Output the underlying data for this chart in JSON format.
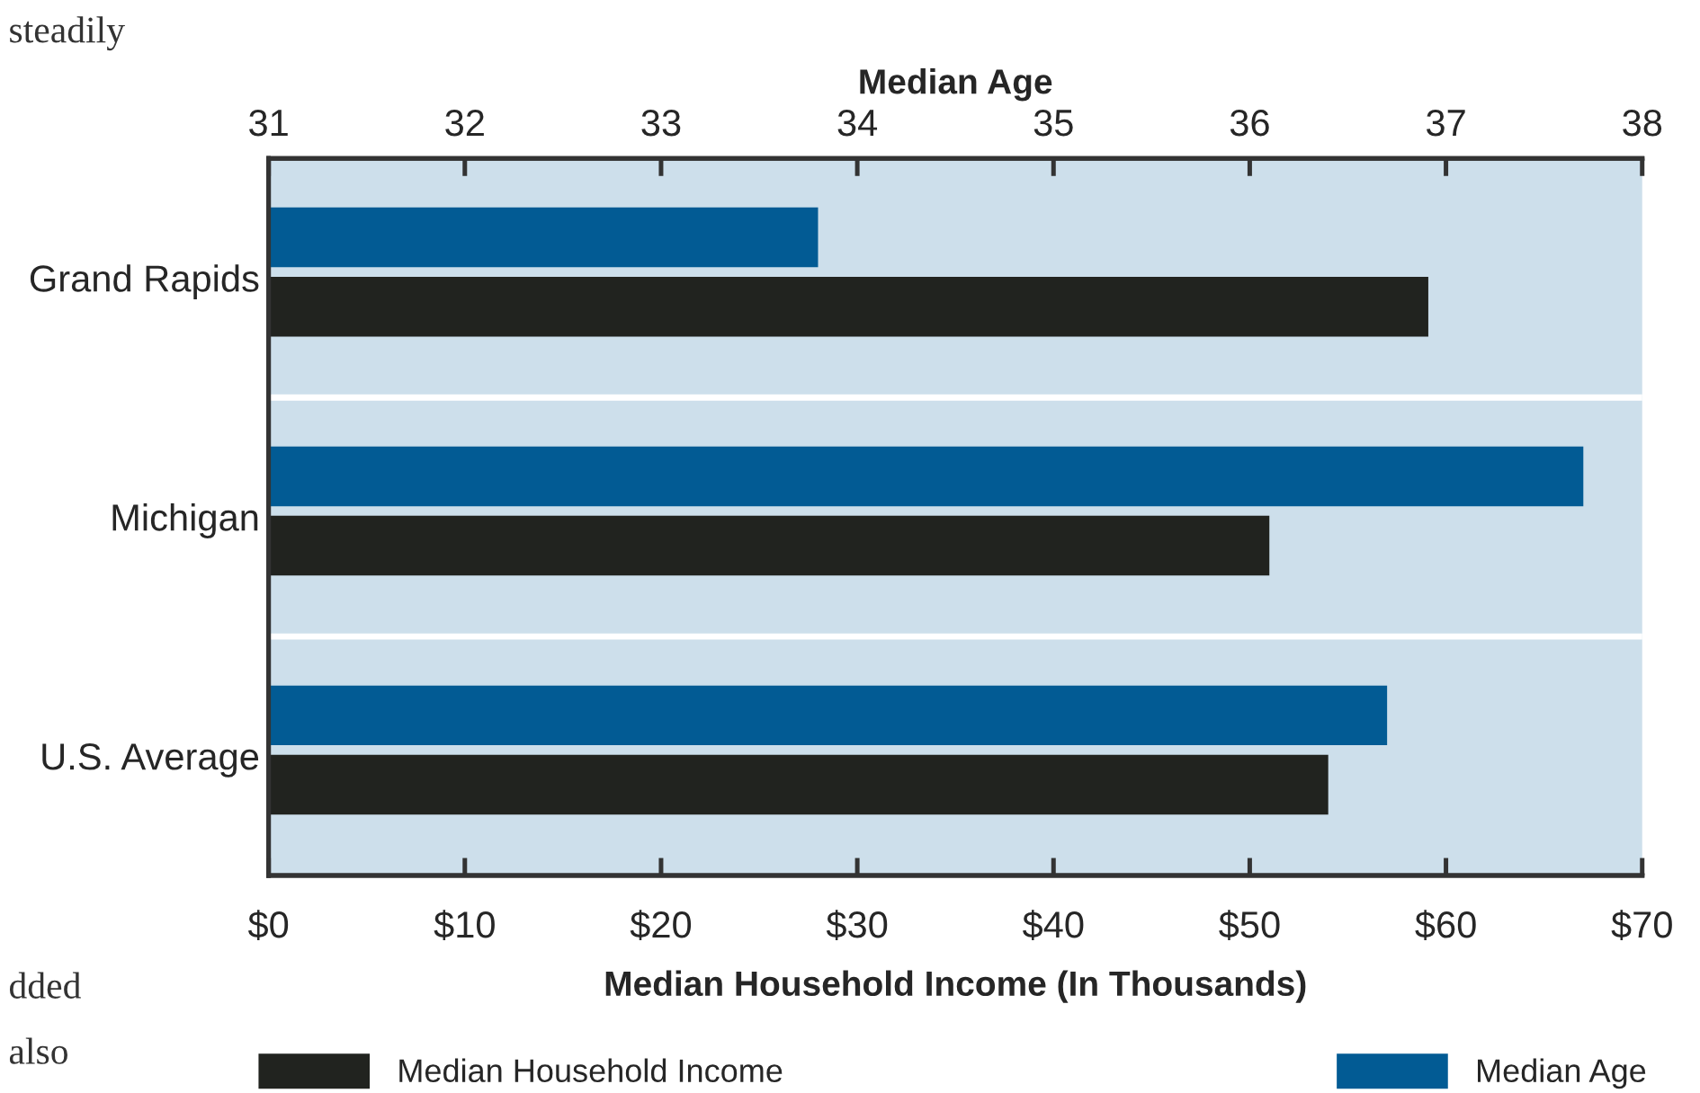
{
  "chart_data": {
    "type": "bar",
    "orientation": "horizontal",
    "categories": [
      "Grand Rapids",
      "Michigan",
      "U.S. Average"
    ],
    "series": [
      {
        "name": "Median Age",
        "color": "#025b94",
        "axis": "x2",
        "base": [
          31,
          31,
          31
        ],
        "values": [
          2.8,
          6.7,
          5.7
        ]
      },
      {
        "name": "Median Household Income",
        "color": "#21231f",
        "values": [
          59.1,
          51.0,
          54.0
        ]
      }
    ],
    "xlabel": "Median Household Income (In Thousands)",
    "x2label": "Median Age",
    "xlim": [
      0,
      70
    ],
    "xticks": [
      {
        "value": 0,
        "label": "$0"
      },
      {
        "value": 10,
        "label": "$10"
      },
      {
        "value": 20,
        "label": "$20"
      },
      {
        "value": 30,
        "label": "$30"
      },
      {
        "value": 40,
        "label": "$40"
      },
      {
        "value": 50,
        "label": "$50"
      },
      {
        "value": 60,
        "label": "$60"
      },
      {
        "value": 70,
        "label": "$70"
      }
    ],
    "x2lim": [
      31,
      38
    ],
    "x2ticks": [
      31,
      32,
      33,
      34,
      35,
      36,
      37,
      38
    ],
    "grid": false,
    "legend": "bottom",
    "annotations": [
      "steadily",
      "dded",
      "also"
    ]
  }
}
